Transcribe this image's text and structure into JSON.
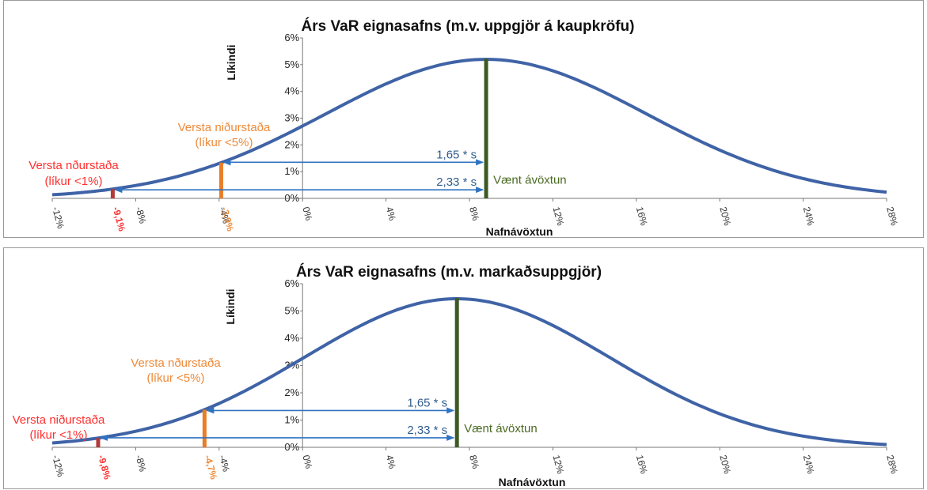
{
  "colors": {
    "curve": "#3f63a6",
    "expected_line": "#3d5a24",
    "var99": "#b23a3a",
    "var95": "#ea7d26",
    "arrow": "#2f72c2",
    "red_text": "#ff2f2f",
    "orange_text": "#ee8a3a",
    "green_text": "#4a6a22",
    "blue_text": "#305c8c"
  },
  "chart_data": [
    {
      "type": "line",
      "title": "Árs VaR eignasafns (m.v. uppgjör á kaupkröfu)",
      "xlabel": "Nafnávöxtun",
      "ylabel": "Líkindi",
      "xlim": [
        -12,
        28
      ],
      "ylim": [
        0,
        6
      ],
      "x_ticks": [
        "-12%",
        "-8%",
        "-4%",
        "0%",
        "4%",
        "8%",
        "12%",
        "16%",
        "20%",
        "24%",
        "28%"
      ],
      "y_ticks": [
        "0%",
        "1%",
        "2%",
        "3%",
        "4%",
        "5%",
        "6%"
      ],
      "distribution": {
        "mean": 8.8,
        "sd": 7.7,
        "peak": 5.2
      },
      "series": [
        {
          "x": [
            -12,
            -10,
            -8,
            -6,
            -4,
            -2,
            0,
            2,
            4,
            6,
            8,
            8.8,
            10,
            12,
            14,
            16,
            18,
            20,
            22,
            24,
            26,
            28
          ],
          "y": [
            0.12,
            0.23,
            0.4,
            0.66,
            1.04,
            1.55,
            2.17,
            2.87,
            3.59,
            4.25,
            4.89,
            5.2,
            5.14,
            4.75,
            4.16,
            3.43,
            2.65,
            1.93,
            1.31,
            0.84,
            0.5,
            0.23
          ]
        }
      ],
      "expected_return": {
        "x": 8.8,
        "label": "Vænt ávöxtun"
      },
      "var_95": {
        "x": -3.9,
        "value_label": "-3,9%",
        "label_line1": "Versta niðurstaða",
        "label_line2": "(líkur <5%)"
      },
      "var_99": {
        "x": -9.1,
        "value_label": "-9,1%",
        "label_line1": "Versta nðurstaða",
        "label_line2": "(líkur <1%)"
      },
      "arrows": [
        {
          "label": "1,65 * s",
          "y": 1.35,
          "from": -3.9,
          "to": 8.8
        },
        {
          "label": "2,33 * s",
          "y": 0.32,
          "from": -9.1,
          "to": 8.8
        }
      ]
    },
    {
      "type": "line",
      "title": "Árs VaR eignasafns (m.v. markaðsuppgjör)",
      "xlabel": "Nafnávöxtun",
      "ylabel": "Líkindi",
      "xlim": [
        -12,
        28
      ],
      "ylim": [
        0,
        6
      ],
      "x_ticks": [
        "-12%",
        "-8%",
        "-4%",
        "0%",
        "4%",
        "8%",
        "12%",
        "16%",
        "20%",
        "24%",
        "28%"
      ],
      "y_ticks": [
        "0%",
        "1%",
        "2%",
        "3%",
        "4%",
        "5%",
        "6%"
      ],
      "distribution": {
        "mean": 7.4,
        "sd": 7.3,
        "peak": 5.45
      },
      "series": [
        {
          "x": [
            -12,
            -10,
            -8,
            -6,
            -4,
            -2,
            0,
            2,
            4,
            6,
            7.4,
            8,
            10,
            12,
            14,
            16,
            18,
            20,
            22,
            24,
            26,
            28
          ],
          "y": [
            0.16,
            0.3,
            0.54,
            0.91,
            1.46,
            2.22,
            3.08,
            3.98,
            4.78,
            5.32,
            5.45,
            5.42,
            5.18,
            4.61,
            3.85,
            3.0,
            2.2,
            1.49,
            0.93,
            0.54,
            0.3,
            0.13
          ]
        }
      ],
      "expected_return": {
        "x": 7.4,
        "label": "Vænt ávöxtun"
      },
      "var_95": {
        "x": -4.7,
        "value_label": "-4,7%",
        "label_line1": "Versta nðurstaða",
        "label_line2": "(líkur <5%)"
      },
      "var_99": {
        "x": -9.8,
        "value_label": "-9,8%",
        "label_line1": "Versta niðurstaða",
        "label_line2": "(líkur <1%)"
      },
      "arrows": [
        {
          "label": "1,65 * s",
          "y": 1.35,
          "from": -4.7,
          "to": 7.4
        },
        {
          "label": "2,33 * s",
          "y": 0.35,
          "from": -9.8,
          "to": 7.4
        }
      ]
    }
  ]
}
